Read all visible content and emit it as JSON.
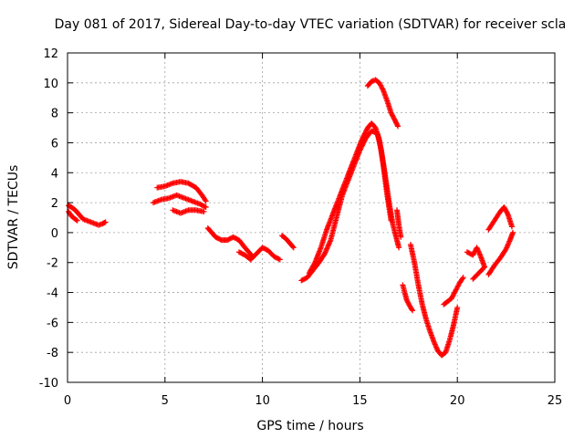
{
  "chart_data": {
    "type": "scatter",
    "title": "Day 081 of 2017, Sidereal Day-to-day VTEC variation (SDTVAR) for receiver scla",
    "xlabel": "GPS time / hours",
    "ylabel": "SDTVAR / TECUs",
    "xlim": [
      0,
      25
    ],
    "ylim": [
      -10,
      12
    ],
    "xticks": [
      0,
      5,
      10,
      15,
      20,
      25
    ],
    "yticks": [
      -10,
      -8,
      -6,
      -4,
      -2,
      0,
      2,
      4,
      6,
      8,
      10,
      12
    ],
    "grid": true,
    "marker": "+",
    "series_color": "#ff0000",
    "segments": [
      {
        "name": "arc-1",
        "points": [
          [
            0.05,
            1.8
          ],
          [
            0.2,
            1.7
          ],
          [
            0.4,
            1.5
          ],
          [
            0.6,
            1.2
          ],
          [
            0.8,
            0.9
          ],
          [
            1.0,
            0.8
          ],
          [
            1.2,
            0.7
          ],
          [
            1.4,
            0.6
          ],
          [
            1.6,
            0.5
          ],
          [
            1.8,
            0.6
          ],
          [
            1.95,
            0.7
          ]
        ]
      },
      {
        "name": "arc-2",
        "points": [
          [
            0.05,
            1.4
          ],
          [
            0.2,
            1.1
          ],
          [
            0.4,
            0.9
          ],
          [
            0.5,
            0.8
          ]
        ]
      },
      {
        "name": "arc-3",
        "points": [
          [
            4.4,
            2.0
          ],
          [
            4.8,
            2.2
          ],
          [
            5.2,
            2.3
          ],
          [
            5.6,
            2.5
          ],
          [
            6.0,
            2.3
          ],
          [
            6.4,
            2.1
          ],
          [
            6.8,
            1.9
          ],
          [
            7.1,
            1.7
          ]
        ]
      },
      {
        "name": "arc-4",
        "points": [
          [
            4.6,
            3.0
          ],
          [
            5.0,
            3.1
          ],
          [
            5.4,
            3.3
          ],
          [
            5.8,
            3.4
          ],
          [
            6.2,
            3.3
          ],
          [
            6.6,
            3.0
          ],
          [
            6.9,
            2.5
          ],
          [
            7.1,
            2.1
          ]
        ]
      },
      {
        "name": "arc-5",
        "points": [
          [
            5.4,
            1.5
          ],
          [
            5.8,
            1.3
          ],
          [
            6.2,
            1.5
          ],
          [
            6.6,
            1.5
          ],
          [
            7.0,
            1.4
          ]
        ]
      },
      {
        "name": "arc-6",
        "points": [
          [
            7.2,
            0.3
          ],
          [
            7.4,
            0.0
          ],
          [
            7.6,
            -0.3
          ],
          [
            7.9,
            -0.5
          ],
          [
            8.2,
            -0.5
          ],
          [
            8.5,
            -0.3
          ],
          [
            8.8,
            -0.5
          ],
          [
            9.1,
            -1.0
          ],
          [
            9.5,
            -1.6
          ]
        ]
      },
      {
        "name": "arc-7",
        "points": [
          [
            8.8,
            -1.3
          ],
          [
            9.1,
            -1.5
          ],
          [
            9.4,
            -1.8
          ],
          [
            9.7,
            -1.4
          ],
          [
            10.0,
            -1.0
          ],
          [
            10.3,
            -1.2
          ],
          [
            10.6,
            -1.6
          ],
          [
            10.9,
            -1.8
          ]
        ]
      },
      {
        "name": "arc-8",
        "points": [
          [
            11.0,
            -0.2
          ],
          [
            11.2,
            -0.4
          ],
          [
            11.4,
            -0.7
          ],
          [
            11.6,
            -1.0
          ]
        ]
      },
      {
        "name": "arc-9",
        "points": [
          [
            12.0,
            -3.2
          ],
          [
            12.3,
            -3.0
          ],
          [
            12.6,
            -2.5
          ],
          [
            12.9,
            -2.0
          ],
          [
            13.2,
            -1.4
          ],
          [
            13.5,
            -0.5
          ],
          [
            13.8,
            1.0
          ],
          [
            14.1,
            2.5
          ],
          [
            14.4,
            3.5
          ],
          [
            14.7,
            4.5
          ],
          [
            15.0,
            5.5
          ],
          [
            15.3,
            6.3
          ],
          [
            15.6,
            6.8
          ],
          [
            15.9,
            6.6
          ],
          [
            16.1,
            5.5
          ],
          [
            16.3,
            3.8
          ],
          [
            16.5,
            2.0
          ],
          [
            16.7,
            0.5
          ],
          [
            16.9,
            -0.5
          ],
          [
            17.0,
            -1.0
          ]
        ]
      },
      {
        "name": "arc-10",
        "points": [
          [
            12.4,
            -2.7
          ],
          [
            12.7,
            -2.0
          ],
          [
            13.0,
            -1.0
          ],
          [
            13.3,
            0.2
          ],
          [
            13.6,
            1.2
          ],
          [
            13.9,
            2.2
          ],
          [
            14.2,
            3.2
          ],
          [
            14.5,
            4.2
          ],
          [
            14.8,
            5.2
          ],
          [
            15.1,
            6.2
          ],
          [
            15.4,
            7.0
          ],
          [
            15.6,
            7.3
          ],
          [
            15.8,
            7.0
          ],
          [
            16.0,
            6.2
          ],
          [
            16.2,
            4.5
          ],
          [
            16.4,
            2.5
          ],
          [
            16.6,
            0.8
          ]
        ]
      },
      {
        "name": "arc-11",
        "points": [
          [
            15.4,
            9.8
          ],
          [
            15.6,
            10.1
          ],
          [
            15.8,
            10.2
          ],
          [
            16.0,
            10.0
          ],
          [
            16.2,
            9.5
          ],
          [
            16.4,
            8.8
          ],
          [
            16.6,
            8.0
          ],
          [
            16.8,
            7.5
          ],
          [
            16.95,
            7.1
          ]
        ]
      },
      {
        "name": "arc-12",
        "points": [
          [
            16.9,
            1.5
          ],
          [
            17.0,
            0.5
          ],
          [
            17.1,
            -0.3
          ]
        ]
      },
      {
        "name": "arc-13",
        "points": [
          [
            17.2,
            -3.5
          ],
          [
            17.4,
            -4.5
          ],
          [
            17.6,
            -5.0
          ],
          [
            17.7,
            -5.2
          ]
        ]
      },
      {
        "name": "arc-14",
        "points": [
          [
            17.6,
            -0.8
          ],
          [
            17.8,
            -2.0
          ],
          [
            18.0,
            -3.5
          ],
          [
            18.2,
            -4.8
          ],
          [
            18.4,
            -5.8
          ],
          [
            18.6,
            -6.6
          ],
          [
            18.8,
            -7.3
          ],
          [
            19.0,
            -7.9
          ],
          [
            19.2,
            -8.2
          ],
          [
            19.4,
            -8.0
          ],
          [
            19.6,
            -7.2
          ],
          [
            19.8,
            -6.2
          ],
          [
            20.0,
            -5.0
          ]
        ]
      },
      {
        "name": "arc-15",
        "points": [
          [
            19.3,
            -4.8
          ],
          [
            19.5,
            -4.6
          ],
          [
            19.7,
            -4.4
          ],
          [
            19.9,
            -3.9
          ],
          [
            20.1,
            -3.4
          ],
          [
            20.3,
            -3.0
          ]
        ]
      },
      {
        "name": "arc-16",
        "points": [
          [
            20.5,
            -1.3
          ],
          [
            20.8,
            -1.5
          ],
          [
            21.0,
            -1.0
          ],
          [
            21.2,
            -1.6
          ],
          [
            21.4,
            -2.3
          ],
          [
            21.1,
            -2.7
          ],
          [
            20.8,
            -3.1
          ]
        ]
      },
      {
        "name": "arc-17",
        "points": [
          [
            21.6,
            0.2
          ],
          [
            21.8,
            0.6
          ],
          [
            22.0,
            1.0
          ],
          [
            22.2,
            1.4
          ],
          [
            22.4,
            1.7
          ],
          [
            22.6,
            1.2
          ],
          [
            22.8,
            0.4
          ]
        ]
      },
      {
        "name": "arc-18",
        "points": [
          [
            21.6,
            -2.8
          ],
          [
            21.9,
            -2.2
          ],
          [
            22.2,
            -1.7
          ],
          [
            22.5,
            -1.1
          ],
          [
            22.7,
            -0.5
          ],
          [
            22.85,
            0.0
          ]
        ]
      }
    ]
  }
}
